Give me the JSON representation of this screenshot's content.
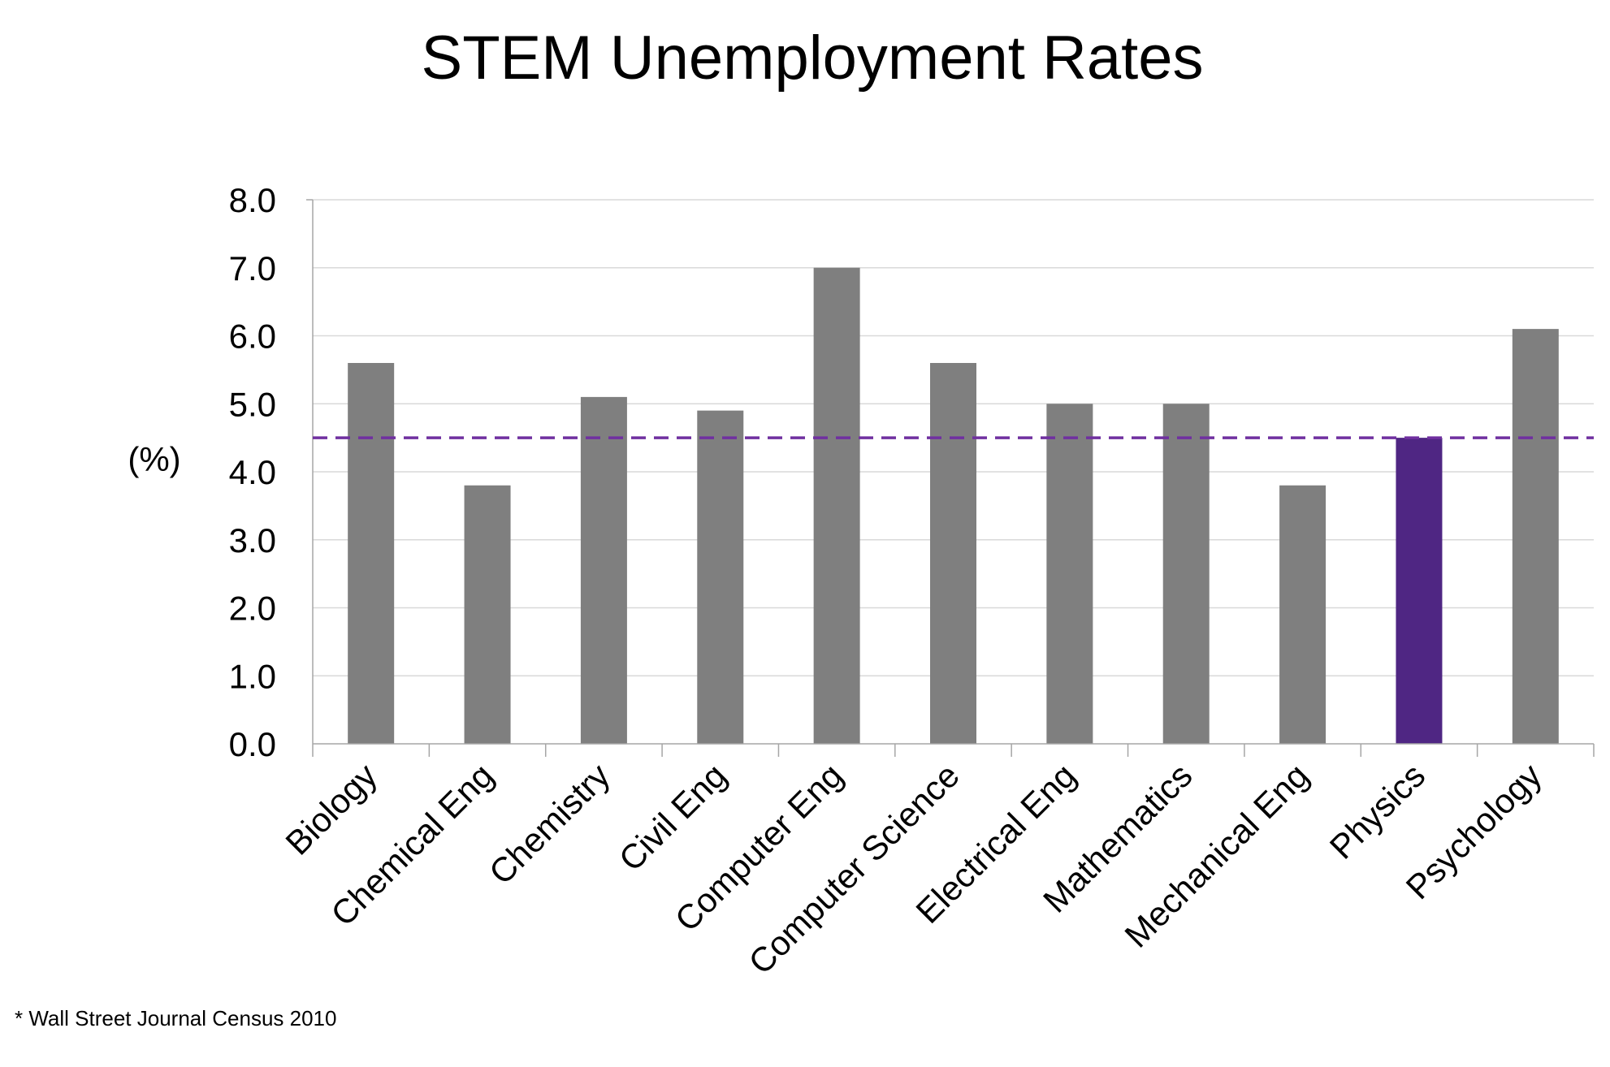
{
  "chart_data": {
    "type": "bar",
    "title": "STEM Unemployment Rates",
    "xlabel": "",
    "ylabel": "(%)",
    "ylim": [
      0,
      8
    ],
    "yticks": [
      "0.0",
      "1.0",
      "2.0",
      "3.0",
      "4.0",
      "5.0",
      "6.0",
      "7.0",
      "8.0"
    ],
    "categories": [
      "Biology",
      "Chemical Eng",
      "Chemistry",
      "Civil Eng",
      "Computer Eng",
      "Computer Science",
      "Electrical Eng",
      "Mathematics",
      "Mechanical Eng",
      "Physics",
      "Psychology"
    ],
    "values": [
      5.6,
      3.8,
      5.1,
      4.9,
      7.0,
      5.6,
      5.0,
      5.0,
      3.8,
      4.5,
      6.1
    ],
    "highlight_category": "Physics",
    "reference_line": {
      "value": 4.5,
      "style": "dashed"
    },
    "grid": true,
    "colors": {
      "bar": "#7f7f7f",
      "highlight": "#4f2683",
      "reference_line": "#7030a0",
      "grid": "#d9d9d9",
      "axis": "#a6a6a6"
    }
  },
  "footnote": "* Wall Street Journal Census 2010"
}
